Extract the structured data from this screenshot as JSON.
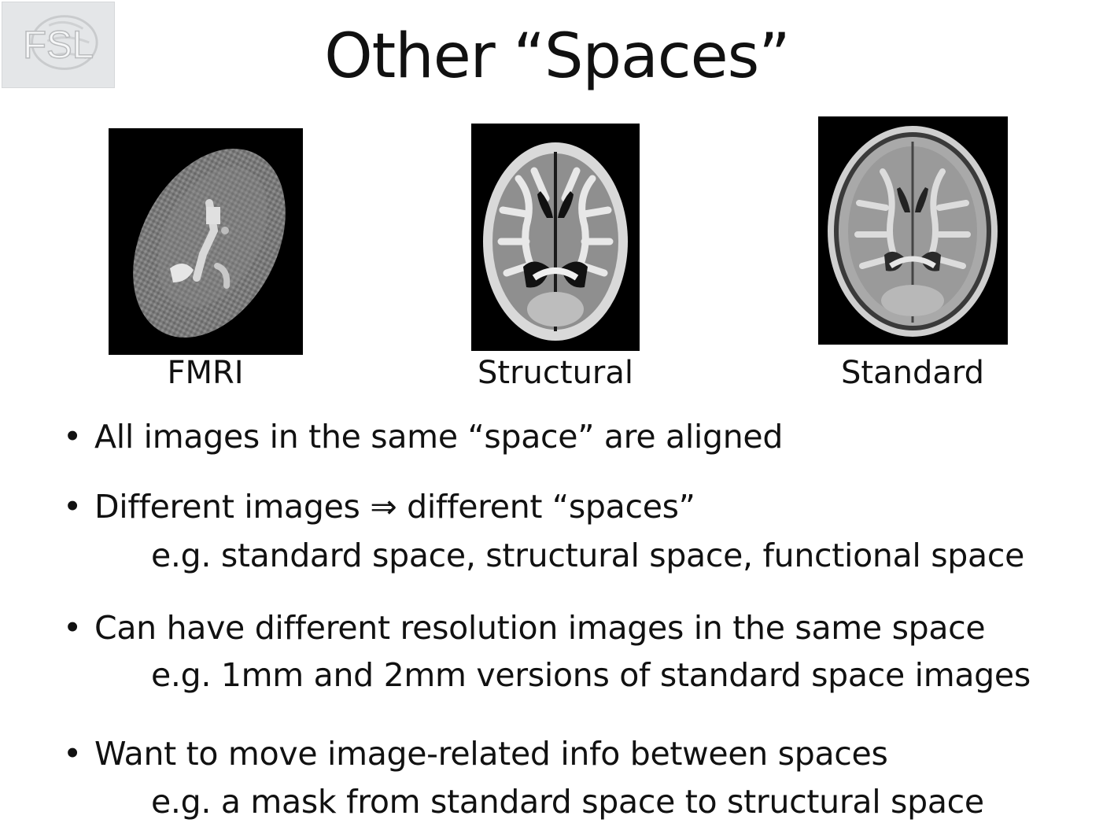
{
  "logo": {
    "icon": "fsl-logo-icon",
    "text": "FSL"
  },
  "title": "Other “Spaces”",
  "panels": [
    {
      "caption": "FMRI",
      "icon": "fmri-brain-slice-icon"
    },
    {
      "caption": "Structural",
      "icon": "structural-brain-slice-icon"
    },
    {
      "caption": "Standard",
      "icon": "standard-brain-slice-icon"
    }
  ],
  "bullets": [
    {
      "marker": "•",
      "text": "All images in the same “space” are aligned",
      "sub": ""
    },
    {
      "marker": "•",
      "text": "Different images ⇒ different “spaces”",
      "sub": "e.g.  standard space, structural space, functional space"
    },
    {
      "marker": "•",
      "text": "Can have different resolution images in the same space",
      "sub": "e.g.  1mm and 2mm versions of standard space images"
    },
    {
      "marker": "•",
      "text": "Want to move image-related info between spaces",
      "sub": "e.g.  a mask from standard space to structural space"
    }
  ]
}
